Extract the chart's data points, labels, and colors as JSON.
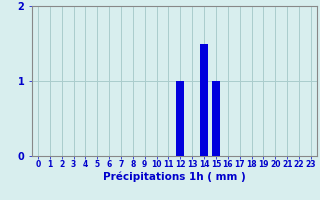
{
  "hours": [
    0,
    1,
    2,
    3,
    4,
    5,
    6,
    7,
    8,
    9,
    10,
    11,
    12,
    13,
    14,
    15,
    16,
    17,
    18,
    19,
    20,
    21,
    22,
    23
  ],
  "values": [
    0,
    0,
    0,
    0,
    0,
    0,
    0,
    0,
    0,
    0,
    0,
    0,
    1.0,
    0,
    1.5,
    1.0,
    0,
    0,
    0,
    0,
    0,
    0,
    0,
    0
  ],
  "bar_color": "#0000dd",
  "background_color": "#d8eeee",
  "grid_color": "#aacccc",
  "axis_color": "#888888",
  "xlabel": "Précipitations 1h ( mm )",
  "ylim": [
    0,
    2
  ],
  "yticks": [
    0,
    1,
    2
  ],
  "xtick_labels": [
    "0",
    "1",
    "2",
    "3",
    "4",
    "5",
    "6",
    "7",
    "8",
    "9",
    "10",
    "11",
    "12",
    "13",
    "14",
    "15",
    "16",
    "17",
    "18",
    "19",
    "20",
    "21",
    "22",
    "23"
  ],
  "tick_color": "#0000cc",
  "label_fontsize": 5.5,
  "xlabel_fontsize": 7.5,
  "ylabel_fontsize": 7
}
